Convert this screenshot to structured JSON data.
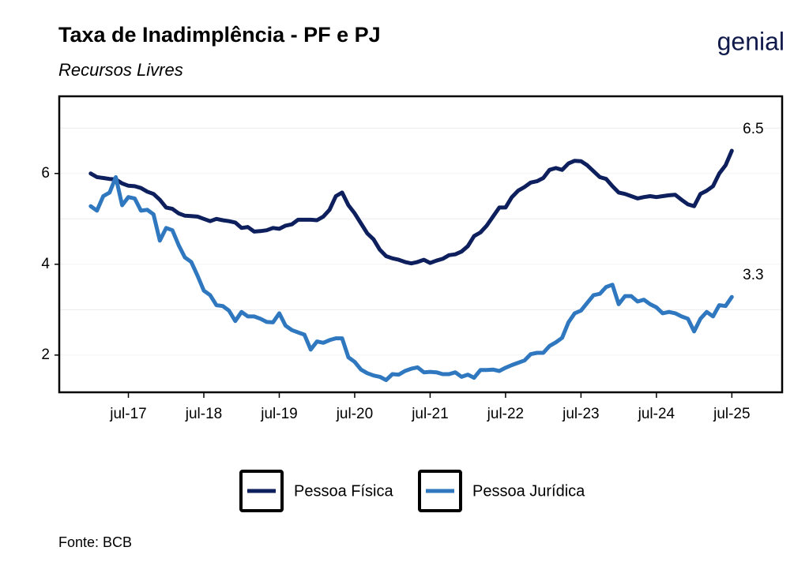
{
  "chart_data": {
    "type": "line",
    "title": "Taxa de Inadimplência - PF e PJ",
    "subtitle": "Recursos Livres",
    "logo": "genial",
    "source": "Fonte: BCB",
    "x": [
      "2017-01",
      "2017-02",
      "2017-03",
      "2017-04",
      "2017-05",
      "2017-06",
      "2017-07",
      "2017-08",
      "2017-09",
      "2017-10",
      "2017-11",
      "2017-12",
      "2018-01",
      "2018-02",
      "2018-03",
      "2018-04",
      "2018-05",
      "2018-06",
      "2018-07",
      "2018-08",
      "2018-09",
      "2018-10",
      "2018-11",
      "2018-12",
      "2019-01",
      "2019-02",
      "2019-03",
      "2019-04",
      "2019-05",
      "2019-06",
      "2019-07",
      "2019-08",
      "2019-09",
      "2019-10",
      "2019-11",
      "2019-12",
      "2020-01",
      "2020-02",
      "2020-03",
      "2020-04",
      "2020-05",
      "2020-06",
      "2020-07",
      "2020-08",
      "2020-09",
      "2020-10",
      "2020-11",
      "2020-12",
      "2021-01",
      "2021-02",
      "2021-03",
      "2021-04",
      "2021-05",
      "2021-06",
      "2021-07",
      "2021-08",
      "2021-09",
      "2021-10",
      "2021-11",
      "2021-12",
      "2022-01",
      "2022-02",
      "2022-03",
      "2022-04",
      "2022-05",
      "2022-06",
      "2022-07",
      "2022-08",
      "2022-09",
      "2022-10",
      "2022-11",
      "2022-12",
      "2023-01",
      "2023-02",
      "2023-03",
      "2023-04",
      "2023-05",
      "2023-06",
      "2023-07",
      "2023-08",
      "2023-09",
      "2023-10",
      "2023-11",
      "2023-12",
      "2024-01",
      "2024-02",
      "2024-03",
      "2024-04",
      "2024-05",
      "2024-06",
      "2024-07",
      "2024-08",
      "2024-09",
      "2024-10",
      "2024-11",
      "2024-12",
      "2025-01",
      "2025-02",
      "2025-03",
      "2025-04",
      "2025-05",
      "2025-06",
      "2025-07"
    ],
    "series": [
      {
        "name": "Pessoa Física",
        "color": "#0d1f5c",
        "values": [
          6.0,
          5.92,
          5.9,
          5.88,
          5.87,
          5.78,
          5.73,
          5.72,
          5.68,
          5.6,
          5.55,
          5.42,
          5.25,
          5.22,
          5.12,
          5.07,
          5.06,
          5.05,
          5.0,
          4.95,
          5.0,
          4.97,
          4.95,
          4.92,
          4.8,
          4.82,
          4.72,
          4.73,
          4.75,
          4.8,
          4.78,
          4.85,
          4.88,
          4.98,
          4.98,
          4.98,
          4.97,
          5.05,
          5.2,
          5.5,
          5.58,
          5.3,
          5.12,
          4.9,
          4.68,
          4.55,
          4.32,
          4.18,
          4.13,
          4.1,
          4.05,
          4.02,
          4.05,
          4.1,
          4.03,
          4.08,
          4.12,
          4.2,
          4.22,
          4.28,
          4.4,
          4.62,
          4.7,
          4.85,
          5.05,
          5.25,
          5.25,
          5.48,
          5.62,
          5.7,
          5.8,
          5.83,
          5.9,
          6.08,
          6.12,
          6.08,
          6.22,
          6.28,
          6.27,
          6.18,
          6.05,
          5.92,
          5.88,
          5.72,
          5.58,
          5.55,
          5.5,
          5.45,
          5.48,
          5.5,
          5.48,
          5.5,
          5.52,
          5.53,
          5.42,
          5.32,
          5.28,
          5.55,
          5.62,
          5.72,
          6.0,
          6.18,
          6.5
        ]
      },
      {
        "name": "Pessoa Jurídica",
        "color": "#2f78bf",
        "values": [
          5.28,
          5.18,
          5.5,
          5.58,
          5.92,
          5.3,
          5.48,
          5.45,
          5.18,
          5.2,
          5.1,
          4.52,
          4.8,
          4.75,
          4.42,
          4.15,
          4.05,
          3.75,
          3.42,
          3.32,
          3.1,
          3.08,
          2.98,
          2.75,
          2.95,
          2.85,
          2.85,
          2.8,
          2.73,
          2.72,
          2.92,
          2.65,
          2.55,
          2.5,
          2.45,
          2.12,
          2.3,
          2.27,
          2.33,
          2.37,
          2.37,
          1.95,
          1.85,
          1.68,
          1.6,
          1.55,
          1.52,
          1.45,
          1.58,
          1.57,
          1.65,
          1.7,
          1.73,
          1.62,
          1.63,
          1.62,
          1.58,
          1.58,
          1.62,
          1.52,
          1.57,
          1.5,
          1.67,
          1.67,
          1.68,
          1.65,
          1.72,
          1.78,
          1.83,
          1.88,
          2.02,
          2.05,
          2.05,
          2.2,
          2.28,
          2.38,
          2.72,
          2.92,
          2.98,
          3.15,
          3.32,
          3.35,
          3.5,
          3.55,
          3.12,
          3.3,
          3.3,
          3.18,
          3.22,
          3.12,
          3.05,
          2.92,
          2.95,
          2.92,
          2.85,
          2.8,
          2.52,
          2.8,
          2.95,
          2.85,
          3.1,
          3.08,
          3.28
        ]
      }
    ],
    "annotations": [
      {
        "text": "6.5",
        "x": "2025-07",
        "y": 6.5
      },
      {
        "text": "3.3",
        "x": "2025-07",
        "y": 3.28
      }
    ],
    "xlim": [
      "2016-08",
      "2026-03"
    ],
    "xticks": [
      {
        "value": "2017-07",
        "label": "jul-17"
      },
      {
        "value": "2018-07",
        "label": "jul-18"
      },
      {
        "value": "2019-07",
        "label": "jul-19"
      },
      {
        "value": "2020-07",
        "label": "jul-20"
      },
      {
        "value": "2021-07",
        "label": "jul-21"
      },
      {
        "value": "2022-07",
        "label": "jul-22"
      },
      {
        "value": "2023-07",
        "label": "jul-23"
      },
      {
        "value": "2024-07",
        "label": "jul-24"
      },
      {
        "value": "2025-07",
        "label": "jul-25"
      }
    ],
    "ylim": [
      1.18,
      7.7
    ],
    "yticks": [
      2,
      4,
      6
    ],
    "minor_yticks": [
      3,
      5,
      7
    ],
    "grid": true,
    "legend": "bottom"
  }
}
